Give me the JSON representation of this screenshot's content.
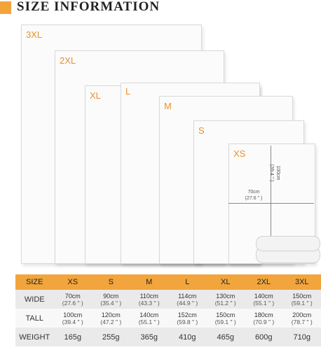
{
  "header": {
    "title": "SIZE INFORMATION"
  },
  "blankets": [
    {
      "label": "3XL"
    },
    {
      "label": "2XL"
    },
    {
      "label": "XL"
    },
    {
      "label": "L"
    },
    {
      "label": "M"
    },
    {
      "label": "S"
    },
    {
      "label": "XS"
    }
  ],
  "dimensions": {
    "width": "70cm",
    "width_in": "(27.6 \" )",
    "height": "100cm",
    "height_in": "(39.4 \" )"
  },
  "table": {
    "columns": [
      "SIZE",
      "XS",
      "S",
      "M",
      "L",
      "XL",
      "2XL",
      "3XL"
    ],
    "wide": {
      "label": "WIDE",
      "values": [
        [
          "70cm",
          "(27.6 \" )"
        ],
        [
          "90cm",
          "(35.4 \" )"
        ],
        [
          "110cm",
          "(43.3 \" )"
        ],
        [
          "114cm",
          "(44.9 \" )"
        ],
        [
          "130cm",
          "(51.2 \" )"
        ],
        [
          "140cm",
          "(55.1 \" )"
        ],
        [
          "150cm",
          "(59.1 \" )"
        ]
      ]
    },
    "tall": {
      "label": "TALL",
      "values": [
        [
          "100cm",
          "(39.4 \" )"
        ],
        [
          "120cm",
          "(47.2 \" )"
        ],
        [
          "140cm",
          "(55.1 \" )"
        ],
        [
          "152cm",
          "(59.8 \" )"
        ],
        [
          "150cm",
          "(59.1 \" )"
        ],
        [
          "180cm",
          "(70.9 \" )"
        ],
        [
          "200cm",
          "(78.7 \" )"
        ]
      ]
    },
    "weight": {
      "label": "WEIGHT",
      "values": [
        "165g",
        "255g",
        "365g",
        "410g",
        "465g",
        "600g",
        "710g"
      ]
    }
  },
  "colors": {
    "accent": "#f2a53c",
    "size_label": "#e7922c"
  }
}
